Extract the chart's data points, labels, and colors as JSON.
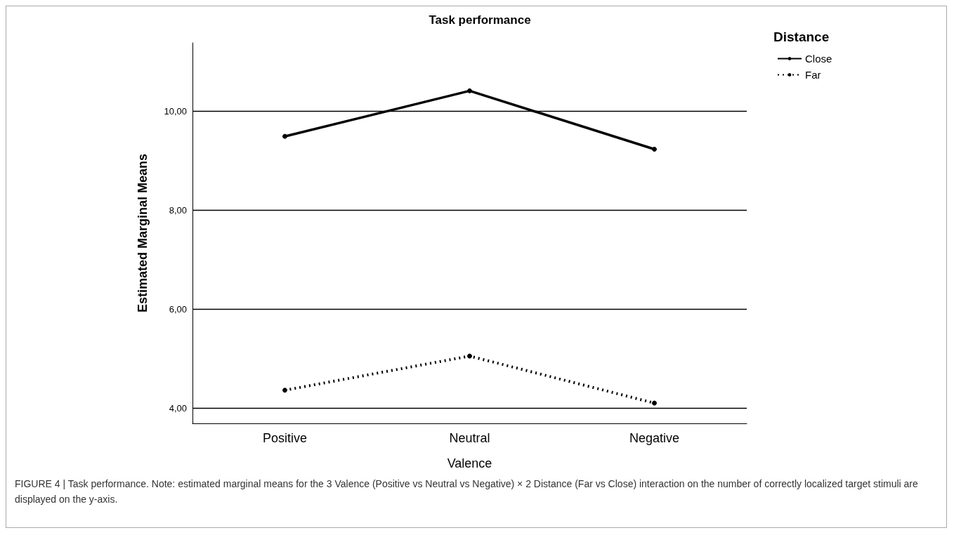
{
  "chart_data": {
    "type": "line",
    "title": "Task performance",
    "xlabel": "Valence",
    "ylabel": "Estimated Marginal Means",
    "legend_title": "Distance",
    "categories": [
      "Positive",
      "Neutral",
      "Negative"
    ],
    "series": [
      {
        "name": "Close",
        "color": "#000000",
        "line_style": "solid",
        "values": [
          9.49,
          10.41,
          9.23
        ]
      },
      {
        "name": "Far",
        "color": "#000000",
        "line_style": "dotted",
        "values": [
          4.36,
          5.05,
          4.1
        ]
      }
    ],
    "ylim": [
      3.69,
      11.38
    ],
    "yticks": [
      {
        "value": 4,
        "label": "4,00"
      },
      {
        "value": 6,
        "label": "6,00"
      },
      {
        "value": 8,
        "label": "8,00"
      },
      {
        "value": 10,
        "label": "10,00"
      }
    ],
    "grid": "y",
    "legend": "top right",
    "marker": "circle",
    "annotations": [
      "FIGURE 4 | Task performance. Note: estimated marginal means for the 3 Valence (Positive vs Neutral vs Negative) × 2 Distance (Far vs Close) interaction on the number of correctly localized target stimuli are displayed on the y-axis."
    ]
  }
}
